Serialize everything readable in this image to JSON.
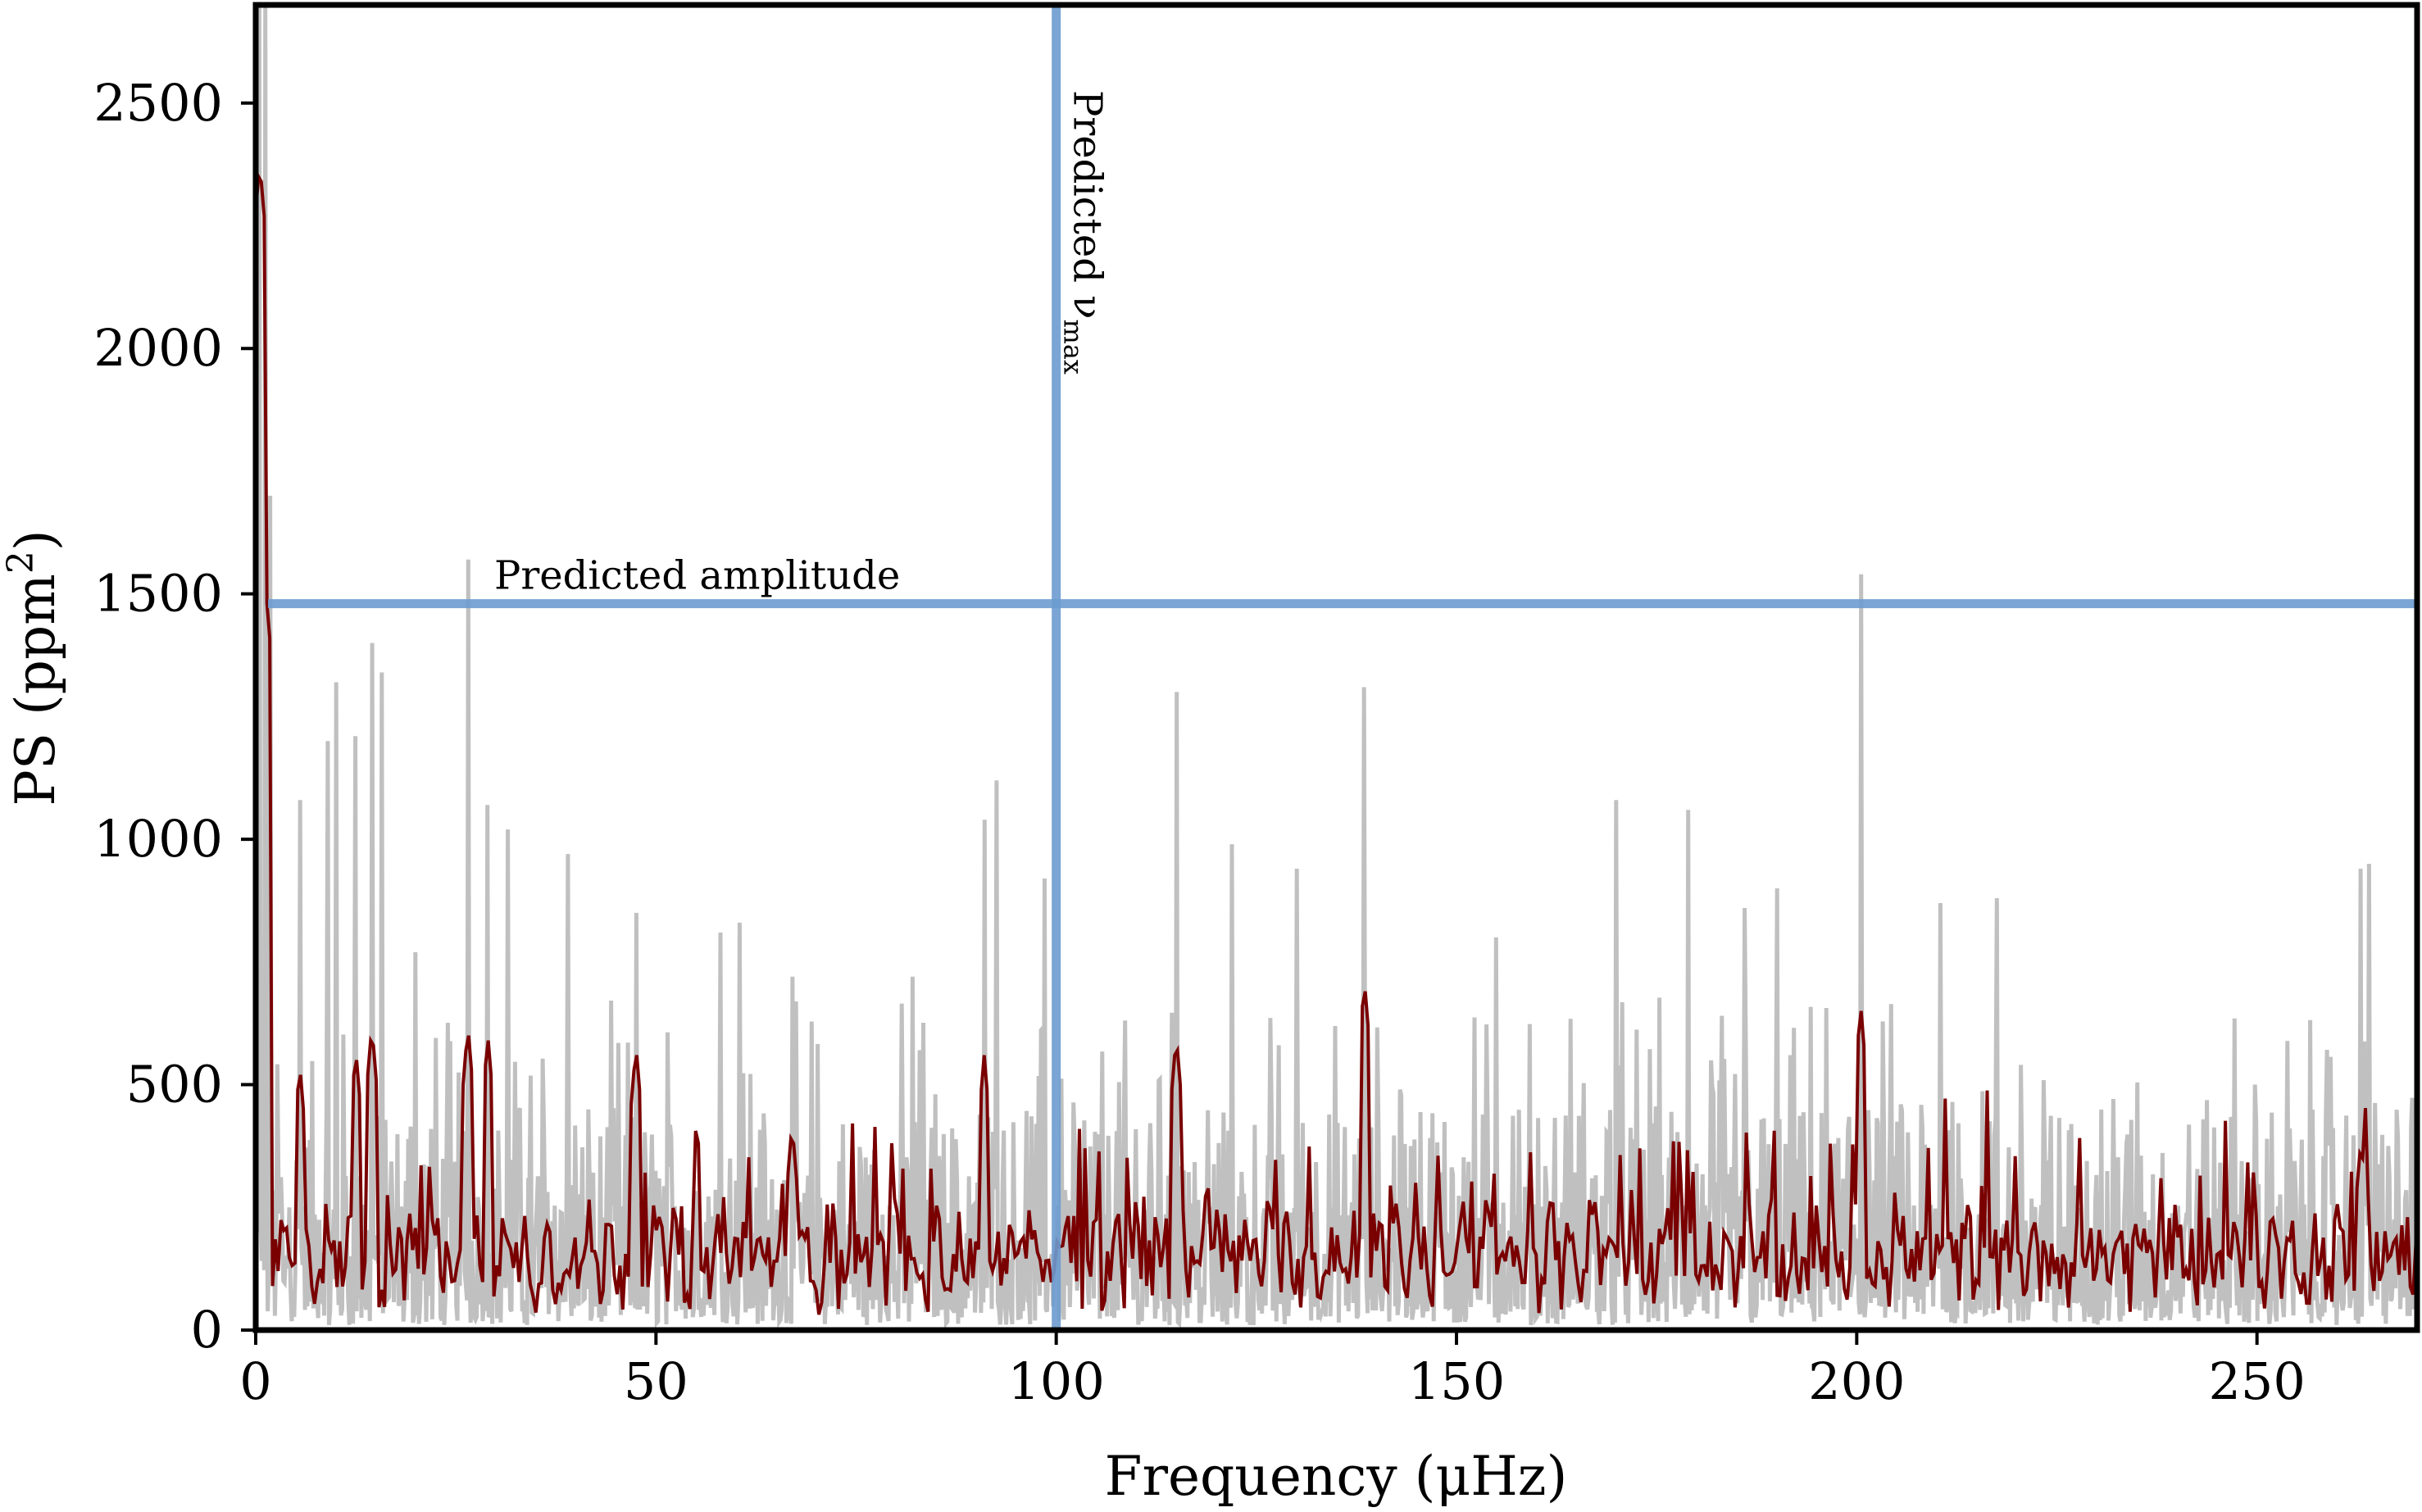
{
  "chart_data": {
    "type": "line",
    "title": "",
    "xlabel": "Frequency (μHz)",
    "ylabel": "PS (ppm²)",
    "xlim": [
      0,
      270
    ],
    "ylim": [
      0,
      2700
    ],
    "x_ticks": [
      0,
      50,
      100,
      150,
      200,
      250
    ],
    "y_ticks": [
      0,
      500,
      1000,
      1500,
      2000,
      2500
    ],
    "x_tick_labels": [
      "0",
      "50",
      "100",
      "150",
      "200",
      "250"
    ],
    "y_tick_labels": [
      "0",
      "500",
      "1000",
      "1500",
      "2000",
      "2500"
    ],
    "grid": false,
    "colors": {
      "raw": "#c0c0c0",
      "smoothed": "#7a0000",
      "prediction": "#6b9bcf",
      "frame": "#000000"
    },
    "series": [
      {
        "name": "power spectrum (raw)",
        "description": "grey noisy spectrum with spikes",
        "peaks": [
          {
            "x": 0.5,
            "y": 2700
          },
          {
            "x": 1.2,
            "y": 2700
          },
          {
            "x": 1.8,
            "y": 1700
          },
          {
            "x": 5.5,
            "y": 1080
          },
          {
            "x": 9.0,
            "y": 1200
          },
          {
            "x": 10.0,
            "y": 1320
          },
          {
            "x": 12.5,
            "y": 1210
          },
          {
            "x": 14.5,
            "y": 1400
          },
          {
            "x": 15.8,
            "y": 1340
          },
          {
            "x": 20.0,
            "y": 770
          },
          {
            "x": 26.5,
            "y": 1570
          },
          {
            "x": 29.0,
            "y": 1070
          },
          {
            "x": 31.5,
            "y": 1020
          },
          {
            "x": 39.0,
            "y": 970
          },
          {
            "x": 47.5,
            "y": 850
          },
          {
            "x": 58.0,
            "y": 810
          },
          {
            "x": 60.5,
            "y": 830
          },
          {
            "x": 67.0,
            "y": 720
          },
          {
            "x": 82.0,
            "y": 720
          },
          {
            "x": 91.0,
            "y": 1040
          },
          {
            "x": 92.5,
            "y": 1120
          },
          {
            "x": 98.5,
            "y": 920
          },
          {
            "x": 115.0,
            "y": 1300
          },
          {
            "x": 122.0,
            "y": 990
          },
          {
            "x": 130.0,
            "y": 940
          },
          {
            "x": 138.5,
            "y": 1310
          },
          {
            "x": 155.0,
            "y": 800
          },
          {
            "x": 170.0,
            "y": 1080
          },
          {
            "x": 179.0,
            "y": 1060
          },
          {
            "x": 186.0,
            "y": 860
          },
          {
            "x": 190.0,
            "y": 900
          },
          {
            "x": 200.5,
            "y": 1540
          },
          {
            "x": 210.5,
            "y": 870
          },
          {
            "x": 217.5,
            "y": 880
          },
          {
            "x": 263.0,
            "y": 940
          },
          {
            "x": 264.0,
            "y": 950
          }
        ]
      },
      {
        "name": "power spectrum (smoothed)",
        "description": "dark red smoothed spectrum",
        "peaks": [
          {
            "x": 0.5,
            "y": 2380
          },
          {
            "x": 1.3,
            "y": 1500
          },
          {
            "x": 5.5,
            "y": 540
          },
          {
            "x": 12.5,
            "y": 570
          },
          {
            "x": 14.5,
            "y": 620
          },
          {
            "x": 26.5,
            "y": 620
          },
          {
            "x": 29.0,
            "y": 600
          },
          {
            "x": 47.5,
            "y": 580
          },
          {
            "x": 67.0,
            "y": 420
          },
          {
            "x": 91.0,
            "y": 560
          },
          {
            "x": 115.0,
            "y": 600
          },
          {
            "x": 138.5,
            "y": 710
          },
          {
            "x": 200.5,
            "y": 660
          },
          {
            "x": 263.0,
            "y": 390
          }
        ],
        "baseline": 150
      }
    ],
    "predicted_numax": {
      "x": 100,
      "label": "Predicted ν",
      "label_subscript": "max"
    },
    "predicted_amplitude": {
      "y": 1480,
      "label": "Predicted amplitude"
    }
  }
}
